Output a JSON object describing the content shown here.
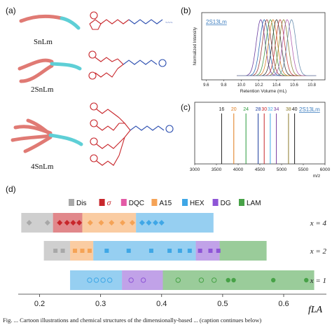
{
  "panel_labels": {
    "a": "(a)",
    "b": "(b)",
    "c": "(c)",
    "d": "(d)"
  },
  "molecules": [
    {
      "label": "SnLm",
      "arms": 1
    },
    {
      "label": "2SnLm",
      "arms": 2
    },
    {
      "label": "4SnLm",
      "arms": 4
    }
  ],
  "legend": [
    {
      "name": "Dis",
      "color": "#a8a8a8"
    },
    {
      "name": "σ",
      "color": "#c8262b"
    },
    {
      "name": "DQC",
      "color": "#e35aa6"
    },
    {
      "name": "A15",
      "color": "#f5a356"
    },
    {
      "name": "HEX",
      "color": "#3fa7e6"
    },
    {
      "name": "DG",
      "color": "#8e55d6"
    },
    {
      "name": "LAM",
      "color": "#47a247"
    }
  ],
  "caption": "Fig. ... Cartoon illustrations and chemical structures of the dimensionally-based ... (caption continues below)",
  "chart_data": [
    {
      "type": "line",
      "panel": "b",
      "annotation": "2S13Lm",
      "xlabel": "Retention Volume (mL)",
      "ylabel": "Normalized Intensity",
      "xlim": [
        9.55,
        10.95
      ],
      "xticks": [
        9.6,
        9.8,
        10.0,
        10.2,
        10.4,
        10.6,
        10.8
      ],
      "peak_centers": [
        10.22,
        10.26,
        10.29,
        10.33,
        10.36,
        10.4,
        10.44,
        10.48,
        10.52,
        10.57
      ],
      "colors": [
        "#6b3fa0",
        "#2d6fb3",
        "#9c3d3d",
        "#4a9a4a",
        "#d9822b",
        "#3a3a3a",
        "#c04040",
        "#8a8a3a",
        "#b060b0",
        "#6a8fb0"
      ]
    },
    {
      "type": "bar",
      "panel": "c",
      "annotation": "2S13Lm",
      "xlabel": "m/z",
      "xlim": [
        3000,
        6000
      ],
      "xticks": [
        3000,
        3500,
        4000,
        4500,
        5000,
        5500,
        6000
      ],
      "peaks": [
        {
          "label": "16",
          "x": 3620,
          "color": "#222222"
        },
        {
          "label": "20",
          "x": 3900,
          "color": "#e07b1a"
        },
        {
          "label": "24",
          "x": 4180,
          "color": "#2a9a3a"
        },
        {
          "label": "28",
          "x": 4460,
          "color": "#1f3f9f"
        },
        {
          "label": "30",
          "x": 4600,
          "color": "#c8262b"
        },
        {
          "label": "32",
          "x": 4740,
          "color": "#3fa7e6"
        },
        {
          "label": "34",
          "x": 4880,
          "color": "#7a3fa0"
        },
        {
          "label": "38",
          "x": 5160,
          "color": "#8a7a2a"
        },
        {
          "label": "40",
          "x": 5300,
          "color": "#222222"
        }
      ]
    },
    {
      "type": "scatter",
      "panel": "d",
      "xlabel": "fLA",
      "xlim": [
        0.165,
        0.67
      ],
      "xticks": [
        0.2,
        0.3,
        0.4,
        0.5,
        0.6
      ],
      "rows": [
        {
          "label": "x = 4",
          "segments": [
            {
              "phase": "Dis",
              "from": 0.17,
              "to": 0.222
            },
            {
              "phase": "σ",
              "from": 0.222,
              "to": 0.27
            },
            {
              "phase": "A15",
              "from": 0.27,
              "to": 0.358
            },
            {
              "phase": "HEX",
              "from": 0.358,
              "to": 0.485
            }
          ],
          "points": [
            {
              "x": 0.183,
              "phase": "Dis",
              "marker": "diamond"
            },
            {
              "x": 0.213,
              "phase": "Dis",
              "marker": "diamond"
            },
            {
              "x": 0.233,
              "phase": "σ",
              "marker": "diamond"
            },
            {
              "x": 0.245,
              "phase": "σ",
              "marker": "diamond"
            },
            {
              "x": 0.255,
              "phase": "σ",
              "marker": "diamond"
            },
            {
              "x": 0.265,
              "phase": "σ",
              "marker": "diamond"
            },
            {
              "x": 0.283,
              "phase": "A15",
              "marker": "diamond"
            },
            {
              "x": 0.301,
              "phase": "A15",
              "marker": "diamond"
            },
            {
              "x": 0.318,
              "phase": "A15",
              "marker": "diamond"
            },
            {
              "x": 0.336,
              "phase": "A15",
              "marker": "diamond"
            },
            {
              "x": 0.352,
              "phase": "A15",
              "marker": "diamond"
            },
            {
              "x": 0.368,
              "phase": "HEX",
              "marker": "diamond"
            },
            {
              "x": 0.379,
              "phase": "HEX",
              "marker": "diamond"
            },
            {
              "x": 0.39,
              "phase": "HEX",
              "marker": "diamond"
            },
            {
              "x": 0.4,
              "phase": "HEX",
              "marker": "diamond"
            }
          ]
        },
        {
          "label": "x = 2",
          "segments": [
            {
              "phase": "Dis",
              "from": 0.207,
              "to": 0.25
            },
            {
              "phase": "A15",
              "from": 0.25,
              "to": 0.288
            },
            {
              "phase": "HEX",
              "from": 0.288,
              "to": 0.456
            },
            {
              "phase": "DG",
              "from": 0.456,
              "to": 0.495
            },
            {
              "phase": "LAM",
              "from": 0.495,
              "to": 0.572
            }
          ],
          "points": [
            {
              "x": 0.226,
              "phase": "Dis",
              "marker": "square"
            },
            {
              "x": 0.238,
              "phase": "Dis",
              "marker": "square"
            },
            {
              "x": 0.258,
              "phase": "A15",
              "marker": "square"
            },
            {
              "x": 0.27,
              "phase": "A15",
              "marker": "square"
            },
            {
              "x": 0.282,
              "phase": "A15",
              "marker": "square"
            },
            {
              "x": 0.31,
              "phase": "HEX",
              "marker": "square"
            },
            {
              "x": 0.346,
              "phase": "HEX",
              "marker": "square"
            },
            {
              "x": 0.383,
              "phase": "HEX",
              "marker": "square"
            },
            {
              "x": 0.413,
              "phase": "HEX",
              "marker": "square"
            },
            {
              "x": 0.43,
              "phase": "HEX",
              "marker": "square"
            },
            {
              "x": 0.446,
              "phase": "HEX",
              "marker": "square"
            },
            {
              "x": 0.463,
              "phase": "DG",
              "marker": "square"
            },
            {
              "x": 0.48,
              "phase": "DG",
              "marker": "square"
            },
            {
              "x": 0.493,
              "phase": "DG",
              "marker": "square"
            }
          ]
        },
        {
          "label": "x = 1",
          "segments": [
            {
              "phase": "HEX",
              "from": 0.25,
              "to": 0.335
            },
            {
              "phase": "DG",
              "from": 0.335,
              "to": 0.402
            },
            {
              "phase": "LAM",
              "from": 0.402,
              "to": 0.65
            }
          ],
          "points": [
            {
              "x": 0.282,
              "phase": "HEX",
              "marker": "circle-open"
            },
            {
              "x": 0.293,
              "phase": "HEX",
              "marker": "circle-open"
            },
            {
              "x": 0.304,
              "phase": "HEX",
              "marker": "circle-open"
            },
            {
              "x": 0.315,
              "phase": "HEX",
              "marker": "circle-open"
            },
            {
              "x": 0.35,
              "phase": "DG",
              "marker": "circle-open"
            },
            {
              "x": 0.37,
              "phase": "DG",
              "marker": "circle-open"
            },
            {
              "x": 0.427,
              "phase": "LAM",
              "marker": "circle-open"
            },
            {
              "x": 0.465,
              "phase": "LAM",
              "marker": "circle-open"
            },
            {
              "x": 0.486,
              "phase": "LAM",
              "marker": "circle-open"
            },
            {
              "x": 0.509,
              "phase": "LAM",
              "marker": "circle"
            },
            {
              "x": 0.518,
              "phase": "LAM",
              "marker": "circle"
            },
            {
              "x": 0.583,
              "phase": "LAM",
              "marker": "circle"
            },
            {
              "x": 0.637,
              "phase": "LAM",
              "marker": "circle"
            }
          ]
        }
      ]
    }
  ]
}
